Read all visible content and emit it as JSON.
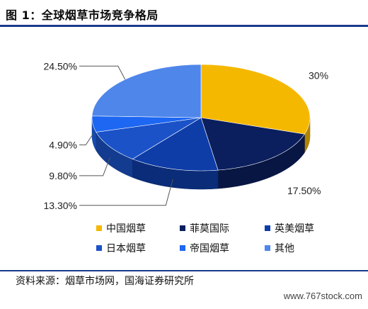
{
  "figure": {
    "title": "图 1：全球烟草市场竞争格局",
    "source": "资料来源：烟草市场网，国海证券研究所",
    "watermark": "www.767stock.com"
  },
  "chart_data": {
    "type": "pie",
    "style": "3d-exploded-none",
    "series": [
      {
        "name": "中国烟草",
        "value": 30.0,
        "label": "30%",
        "color": "#F5B800"
      },
      {
        "name": "菲莫国际",
        "value": 17.5,
        "label": "17.50%",
        "color": "#0B1F5E"
      },
      {
        "name": "英美烟草",
        "value": 13.3,
        "label": "13.30%",
        "color": "#0E3DA8"
      },
      {
        "name": "日本烟草",
        "value": 9.8,
        "label": "9.80%",
        "color": "#1B52C8"
      },
      {
        "name": "帝国烟草",
        "value": 4.9,
        "label": "4.90%",
        "color": "#1D67F2"
      },
      {
        "name": "其他",
        "value": 24.5,
        "label": "24.50%",
        "color": "#4F86EA"
      }
    ],
    "legend_position": "bottom"
  }
}
